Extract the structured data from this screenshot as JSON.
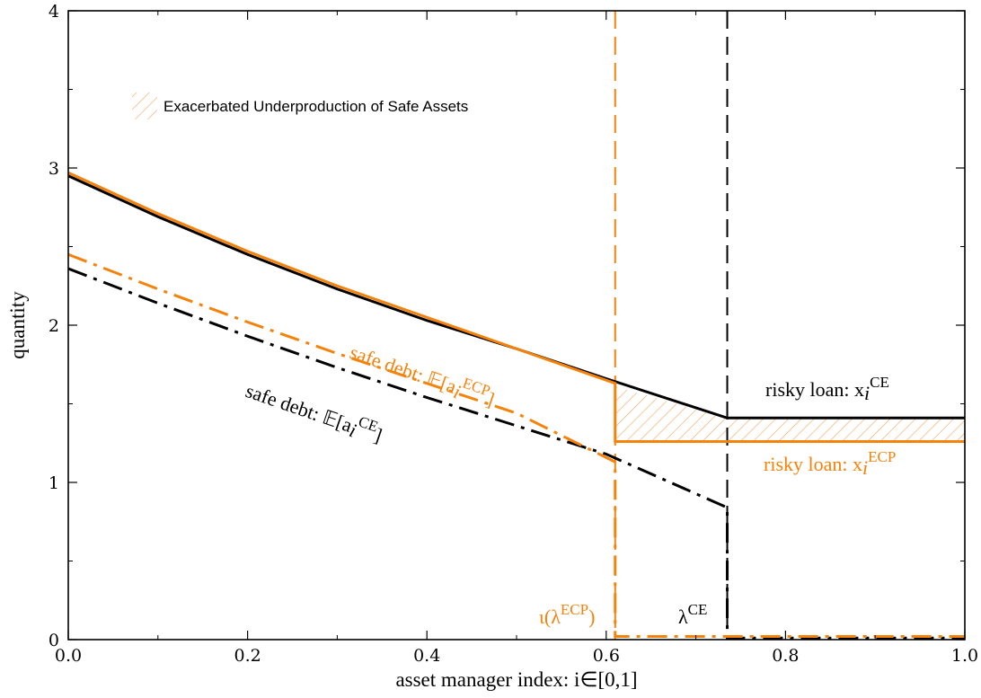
{
  "chart_data": {
    "type": "line",
    "xlabel": "asset manager index: i∈[0,1]",
    "ylabel": "quantity",
    "xlim": [
      0,
      1
    ],
    "ylim": [
      0,
      4
    ],
    "xticks": [
      0,
      0.2,
      0.4,
      0.6,
      0.8,
      1
    ],
    "xtick_labels": [
      "0.0",
      "0.2",
      "0.4",
      "0.6",
      "0.8",
      "1.0"
    ],
    "yticks": [
      0,
      1,
      2,
      3,
      4
    ],
    "ytick_labels": [
      "0",
      "1",
      "2",
      "3",
      "4"
    ],
    "grid": false,
    "colors": {
      "ce": "#000000",
      "ecp": "#f5820a",
      "hatch": "#f5a25a"
    },
    "legend": {
      "placement": "top-left",
      "entry": "Exacerbated Underproduction of Safe Assets"
    },
    "series": [
      {
        "key": "risky_ce",
        "label": "risky loan: x",
        "sub": "i",
        "sup": "CE",
        "color_key": "ce",
        "style": "solid",
        "x": [
          0,
          0.1,
          0.2,
          0.3,
          0.4,
          0.5,
          0.6,
          0.735,
          1.0
        ],
        "y": [
          2.95,
          2.69,
          2.45,
          2.23,
          2.03,
          1.85,
          1.66,
          1.41,
          1.41
        ]
      },
      {
        "key": "risky_ecp",
        "label": "risky loan: x",
        "sub": "i",
        "sup": "ECP",
        "color_key": "ecp",
        "style": "solid",
        "x": [
          0,
          0.1,
          0.2,
          0.3,
          0.4,
          0.5,
          0.61,
          0.61,
          1.0
        ],
        "y": [
          2.97,
          2.71,
          2.47,
          2.25,
          2.05,
          1.85,
          1.63,
          1.26,
          1.26
        ]
      },
      {
        "key": "safe_ce",
        "label": "safe debt: 𝔼[a",
        "sub": "i",
        "sup": "CE",
        "label_end": "]",
        "color_key": "ce",
        "style": "dashdot",
        "x": [
          0,
          0.1,
          0.2,
          0.3,
          0.4,
          0.5,
          0.6,
          0.735,
          0.735,
          1.0
        ],
        "y": [
          2.36,
          2.14,
          1.93,
          1.73,
          1.54,
          1.36,
          1.18,
          0.84,
          0.01,
          0.01
        ]
      },
      {
        "key": "safe_ecp",
        "label": "safe debt: 𝔼[a",
        "sub": "i",
        "sup": "ECP",
        "label_end": "]",
        "color_key": "ecp",
        "style": "dashdot",
        "x": [
          0,
          0.1,
          0.2,
          0.3,
          0.4,
          0.5,
          0.61,
          0.61,
          1.0
        ],
        "y": [
          2.45,
          2.23,
          2.02,
          1.82,
          1.63,
          1.44,
          1.13,
          0.02,
          0.02
        ]
      }
    ],
    "vlines": [
      {
        "x": 0.61,
        "color_key": "ecp",
        "label_main": "ι(λ",
        "label_sup": "ECP",
        "label_end": ")"
      },
      {
        "x": 0.735,
        "color_key": "ce",
        "label_main": "λ",
        "label_sup": "CE",
        "label_end": ""
      }
    ],
    "shaded_region": {
      "x": [
        0.61,
        0.735,
        1.0,
        1.0,
        0.735,
        0.61
      ],
      "y": [
        1.61,
        1.41,
        1.41,
        1.26,
        1.26,
        1.26
      ]
    }
  }
}
